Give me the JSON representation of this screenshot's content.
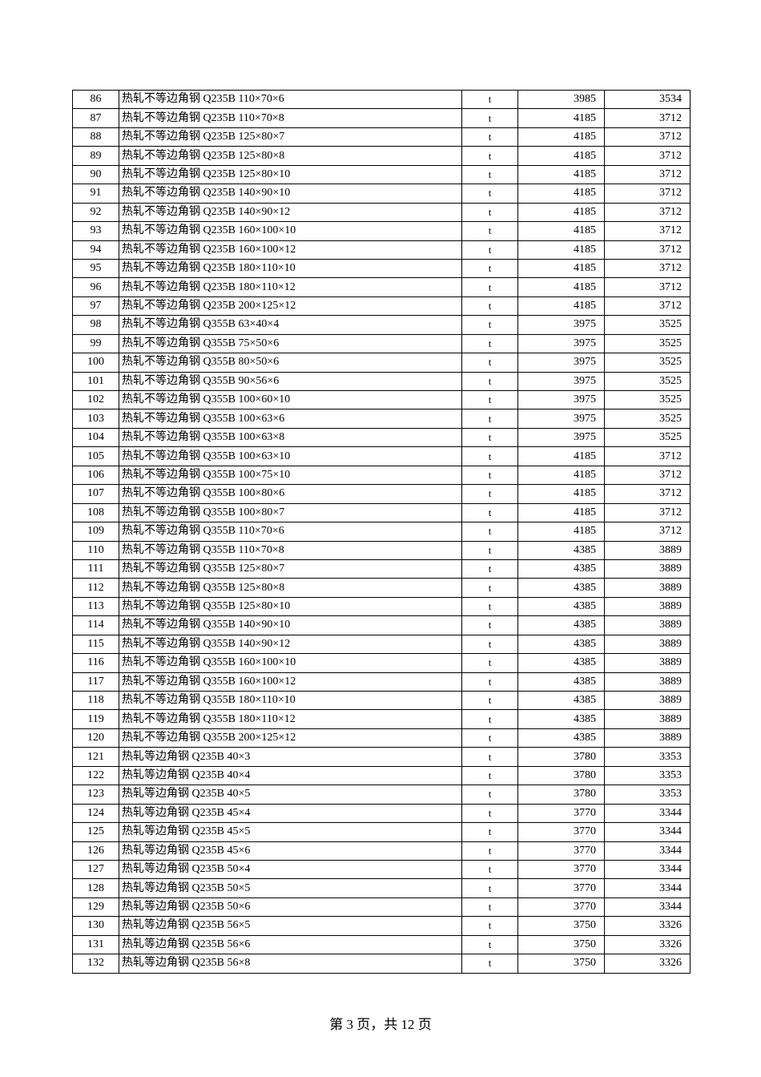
{
  "table": {
    "rows": [
      [
        "86",
        "热轧不等边角钢  Q235B 110×70×6",
        "t",
        "3985",
        "3534"
      ],
      [
        "87",
        "热轧不等边角钢  Q235B 110×70×8",
        "t",
        "4185",
        "3712"
      ],
      [
        "88",
        "热轧不等边角钢  Q235B 125×80×7",
        "t",
        "4185",
        "3712"
      ],
      [
        "89",
        "热轧不等边角钢  Q235B 125×80×8",
        "t",
        "4185",
        "3712"
      ],
      [
        "90",
        "热轧不等边角钢  Q235B 125×80×10",
        "t",
        "4185",
        "3712"
      ],
      [
        "91",
        "热轧不等边角钢  Q235B 140×90×10",
        "t",
        "4185",
        "3712"
      ],
      [
        "92",
        "热轧不等边角钢  Q235B 140×90×12",
        "t",
        "4185",
        "3712"
      ],
      [
        "93",
        "热轧不等边角钢  Q235B 160×100×10",
        "t",
        "4185",
        "3712"
      ],
      [
        "94",
        "热轧不等边角钢  Q235B 160×100×12",
        "t",
        "4185",
        "3712"
      ],
      [
        "95",
        "热轧不等边角钢  Q235B 180×110×10",
        "t",
        "4185",
        "3712"
      ],
      [
        "96",
        "热轧不等边角钢  Q235B 180×110×12",
        "t",
        "4185",
        "3712"
      ],
      [
        "97",
        "热轧不等边角钢  Q235B 200×125×12",
        "t",
        "4185",
        "3712"
      ],
      [
        "98",
        "热轧不等边角钢  Q355B 63×40×4",
        "t",
        "3975",
        "3525"
      ],
      [
        "99",
        "热轧不等边角钢  Q355B 75×50×6",
        "t",
        "3975",
        "3525"
      ],
      [
        "100",
        "热轧不等边角钢  Q355B 80×50×6",
        "t",
        "3975",
        "3525"
      ],
      [
        "101",
        "热轧不等边角钢  Q355B 90×56×6",
        "t",
        "3975",
        "3525"
      ],
      [
        "102",
        "热轧不等边角钢  Q355B 100×60×10",
        "t",
        "3975",
        "3525"
      ],
      [
        "103",
        "热轧不等边角钢  Q355B 100×63×6",
        "t",
        "3975",
        "3525"
      ],
      [
        "104",
        "热轧不等边角钢  Q355B 100×63×8",
        "t",
        "3975",
        "3525"
      ],
      [
        "105",
        "热轧不等边角钢  Q355B 100×63×10",
        "t",
        "4185",
        "3712"
      ],
      [
        "106",
        "热轧不等边角钢  Q355B 100×75×10",
        "t",
        "4185",
        "3712"
      ],
      [
        "107",
        "热轧不等边角钢  Q355B 100×80×6",
        "t",
        "4185",
        "3712"
      ],
      [
        "108",
        "热轧不等边角钢  Q355B 100×80×7",
        "t",
        "4185",
        "3712"
      ],
      [
        "109",
        "热轧不等边角钢  Q355B 110×70×6",
        "t",
        "4185",
        "3712"
      ],
      [
        "110",
        "热轧不等边角钢  Q355B 110×70×8",
        "t",
        "4385",
        "3889"
      ],
      [
        "111",
        "热轧不等边角钢  Q355B 125×80×7",
        "t",
        "4385",
        "3889"
      ],
      [
        "112",
        "热轧不等边角钢  Q355B 125×80×8",
        "t",
        "4385",
        "3889"
      ],
      [
        "113",
        "热轧不等边角钢  Q355B 125×80×10",
        "t",
        "4385",
        "3889"
      ],
      [
        "114",
        "热轧不等边角钢  Q355B 140×90×10",
        "t",
        "4385",
        "3889"
      ],
      [
        "115",
        "热轧不等边角钢  Q355B 140×90×12",
        "t",
        "4385",
        "3889"
      ],
      [
        "116",
        "热轧不等边角钢  Q355B 160×100×10",
        "t",
        "4385",
        "3889"
      ],
      [
        "117",
        "热轧不等边角钢  Q355B 160×100×12",
        "t",
        "4385",
        "3889"
      ],
      [
        "118",
        "热轧不等边角钢  Q355B 180×110×10",
        "t",
        "4385",
        "3889"
      ],
      [
        "119",
        "热轧不等边角钢  Q355B 180×110×12",
        "t",
        "4385",
        "3889"
      ],
      [
        "120",
        "热轧不等边角钢  Q355B 200×125×12",
        "t",
        "4385",
        "3889"
      ],
      [
        "121",
        "热轧等边角钢  Q235B 40×3",
        "t",
        "3780",
        "3353"
      ],
      [
        "122",
        "热轧等边角钢  Q235B 40×4",
        "t",
        "3780",
        "3353"
      ],
      [
        "123",
        "热轧等边角钢  Q235B 40×5",
        "t",
        "3780",
        "3353"
      ],
      [
        "124",
        "热轧等边角钢  Q235B 45×4",
        "t",
        "3770",
        "3344"
      ],
      [
        "125",
        "热轧等边角钢  Q235B 45×5",
        "t",
        "3770",
        "3344"
      ],
      [
        "126",
        "热轧等边角钢  Q235B 45×6",
        "t",
        "3770",
        "3344"
      ],
      [
        "127",
        "热轧等边角钢  Q235B 50×4",
        "t",
        "3770",
        "3344"
      ],
      [
        "128",
        "热轧等边角钢  Q235B 50×5",
        "t",
        "3770",
        "3344"
      ],
      [
        "129",
        "热轧等边角钢  Q235B 50×6",
        "t",
        "3770",
        "3344"
      ],
      [
        "130",
        "热轧等边角钢  Q235B 56×5",
        "t",
        "3750",
        "3326"
      ],
      [
        "131",
        "热轧等边角钢  Q235B 56×6",
        "t",
        "3750",
        "3326"
      ],
      [
        "132",
        "热轧等边角钢  Q235B 56×8",
        "t",
        "3750",
        "3326"
      ]
    ]
  },
  "footer": {
    "page_label": "第 3 页，共 12 页"
  }
}
